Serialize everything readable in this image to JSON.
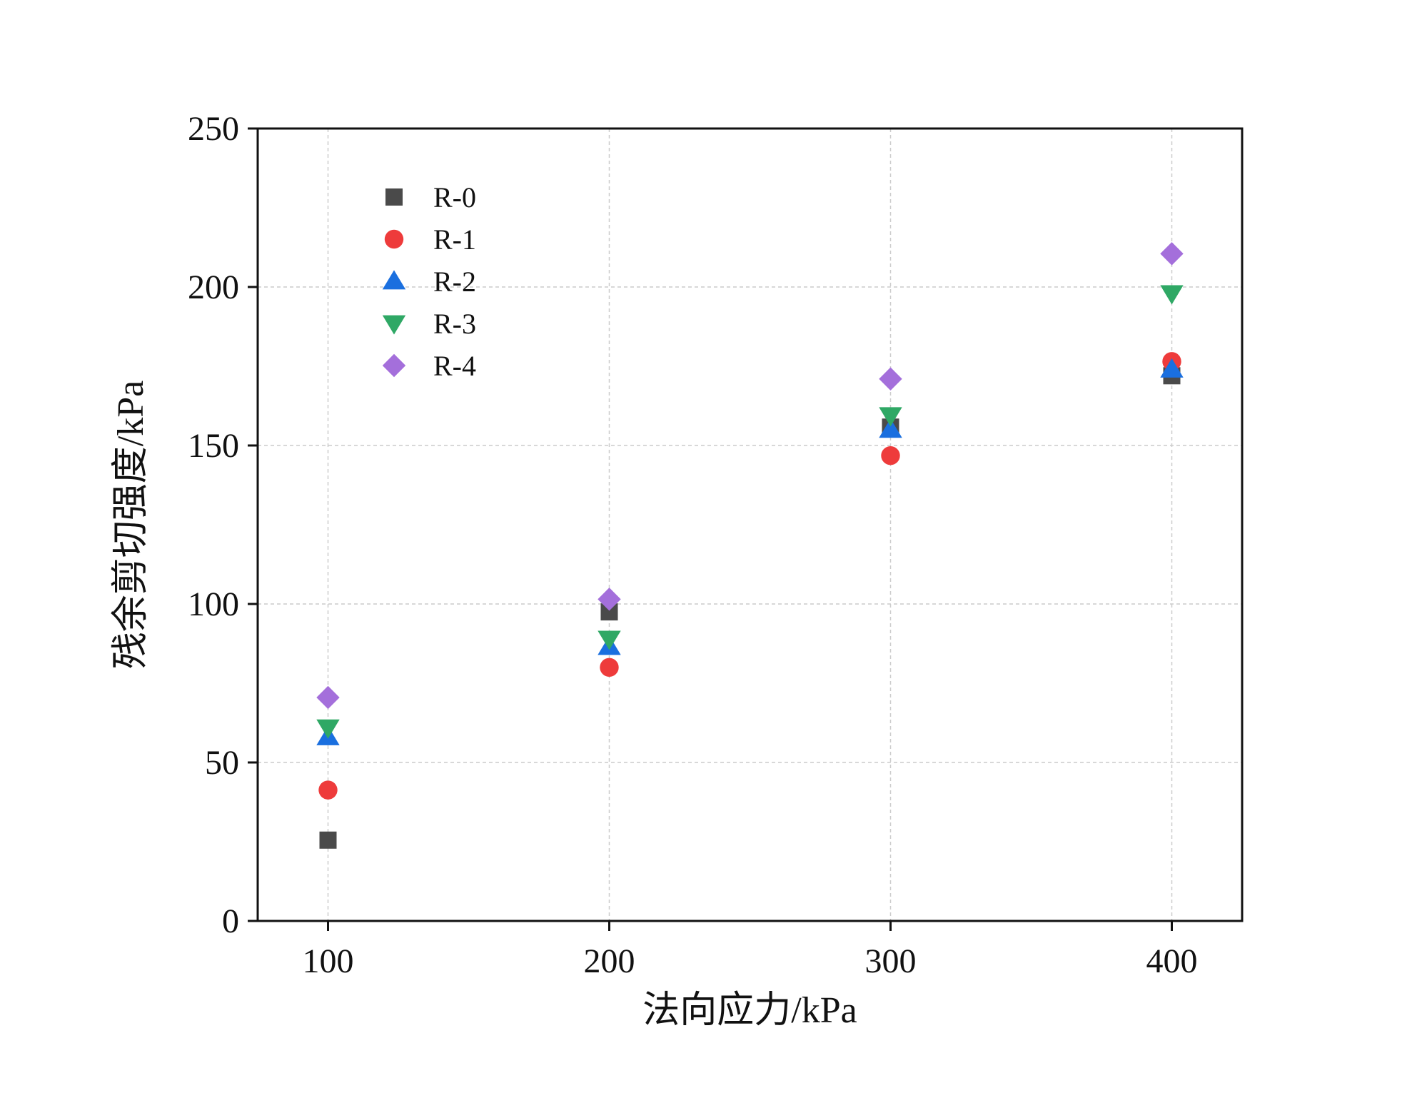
{
  "chart_data": {
    "type": "scatter",
    "title": "",
    "xlabel": "法向应力/kPa",
    "ylabel": "残余剪切强度/kPa",
    "xlim": [
      75,
      425
    ],
    "ylim": [
      0,
      250
    ],
    "xticks": [
      100,
      200,
      300,
      400
    ],
    "yticks": [
      0,
      50,
      100,
      150,
      200,
      250
    ],
    "grid": true,
    "legend_position": "top-left",
    "x": [
      100,
      200,
      300,
      400
    ],
    "series": [
      {
        "name": "R-0",
        "marker": "square",
        "color": "#4a4a4a",
        "values": [
          25.5,
          97.5,
          155.8,
          172.0
        ]
      },
      {
        "name": "R-1",
        "marker": "circle",
        "color": "#ee3b3b",
        "values": [
          41.3,
          80.0,
          146.8,
          176.5
        ]
      },
      {
        "name": "R-2",
        "marker": "triangle-up",
        "color": "#1a6fdf",
        "values": [
          58.0,
          86.5,
          155.0,
          174.0
        ]
      },
      {
        "name": "R-3",
        "marker": "triangle-down",
        "color": "#2fa865",
        "values": [
          61.0,
          89.0,
          159.5,
          198.0
        ]
      },
      {
        "name": "R-4",
        "marker": "diamond",
        "color": "#a46fdb",
        "values": [
          70.5,
          101.5,
          171.0,
          210.5
        ]
      }
    ]
  }
}
